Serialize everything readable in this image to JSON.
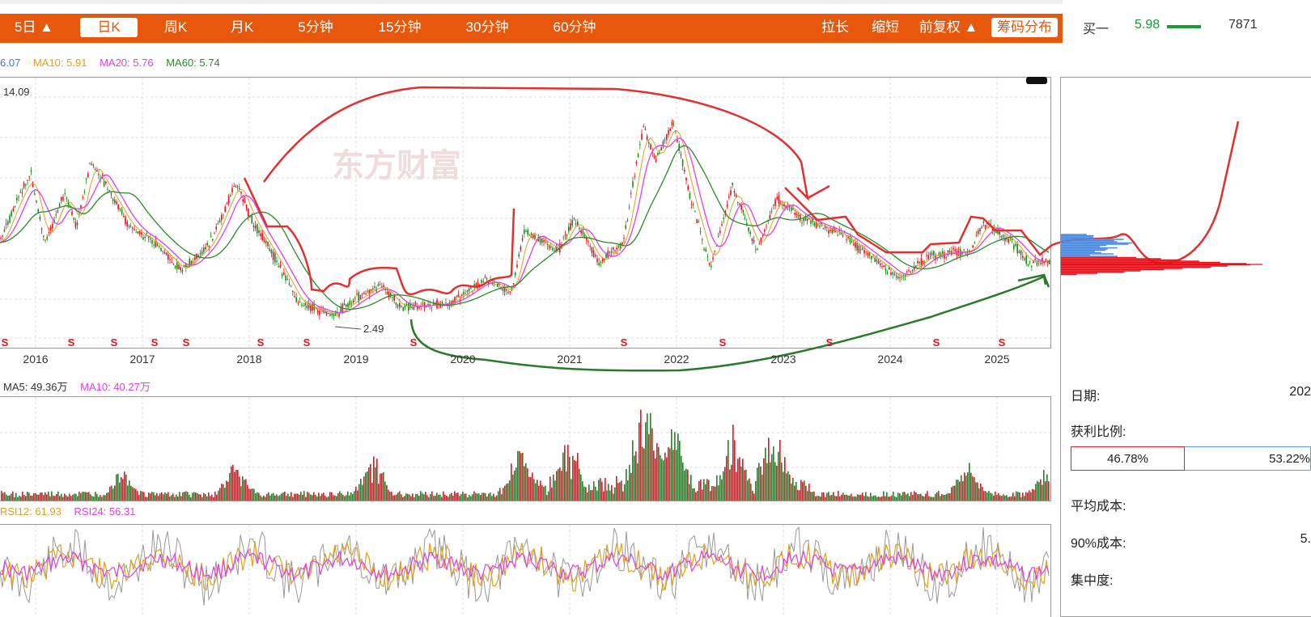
{
  "toolbar": {
    "tabs": [
      "5日 ▲",
      "日K",
      "周K",
      "月K",
      "5分钟",
      "15分钟",
      "30分钟",
      "60分钟"
    ],
    "active_tab": "日K",
    "right_buttons": [
      "拉长",
      "缩短",
      "前复权 ▲",
      "筹码分布"
    ]
  },
  "order_book": {
    "label": "买一",
    "price": "5.98",
    "volume": "7871"
  },
  "ma_legend": {
    "ma5": "6.07",
    "ma10": "MA10: 5.91",
    "ma20": "MA20: 5.76",
    "ma60": "MA60: 5.74"
  },
  "price_chart": {
    "high_label": "14.09",
    "low_label": "2.49",
    "watermark": "东方财富",
    "years": [
      "2016",
      "2017",
      "2018",
      "2019",
      "2020",
      "2021",
      "2022",
      "2023",
      "2024",
      "2025"
    ],
    "marker_glyph": "S"
  },
  "volume_legend": {
    "ma5": "MA5: 49.36万",
    "ma10": "MA10: 40.27万"
  },
  "rsi_legend": {
    "rsi12": "RSI12: 61.93",
    "rsi24": "RSI24: 56.31"
  },
  "chip_panel": {
    "date_label": "日期:",
    "date_value": "202",
    "profit_label": "获利比例:",
    "profit_pct": "46.78%",
    "loss_pct": "53.22%",
    "avg_cost_label": "平均成本:",
    "cost90_label": "90%成本:",
    "cost90_value": "5.",
    "concentration_label": "集中度:"
  },
  "colors": {
    "brand": "#e8580c",
    "up": "#e8101a",
    "down": "#1a8a1a",
    "ma5": "#3b78d8",
    "ma10": "#e0a020",
    "ma20": "#e040e0",
    "ma60": "#2a8a2a",
    "annotation_red": "#e03030",
    "annotation_green": "#2a7a2a"
  }
}
